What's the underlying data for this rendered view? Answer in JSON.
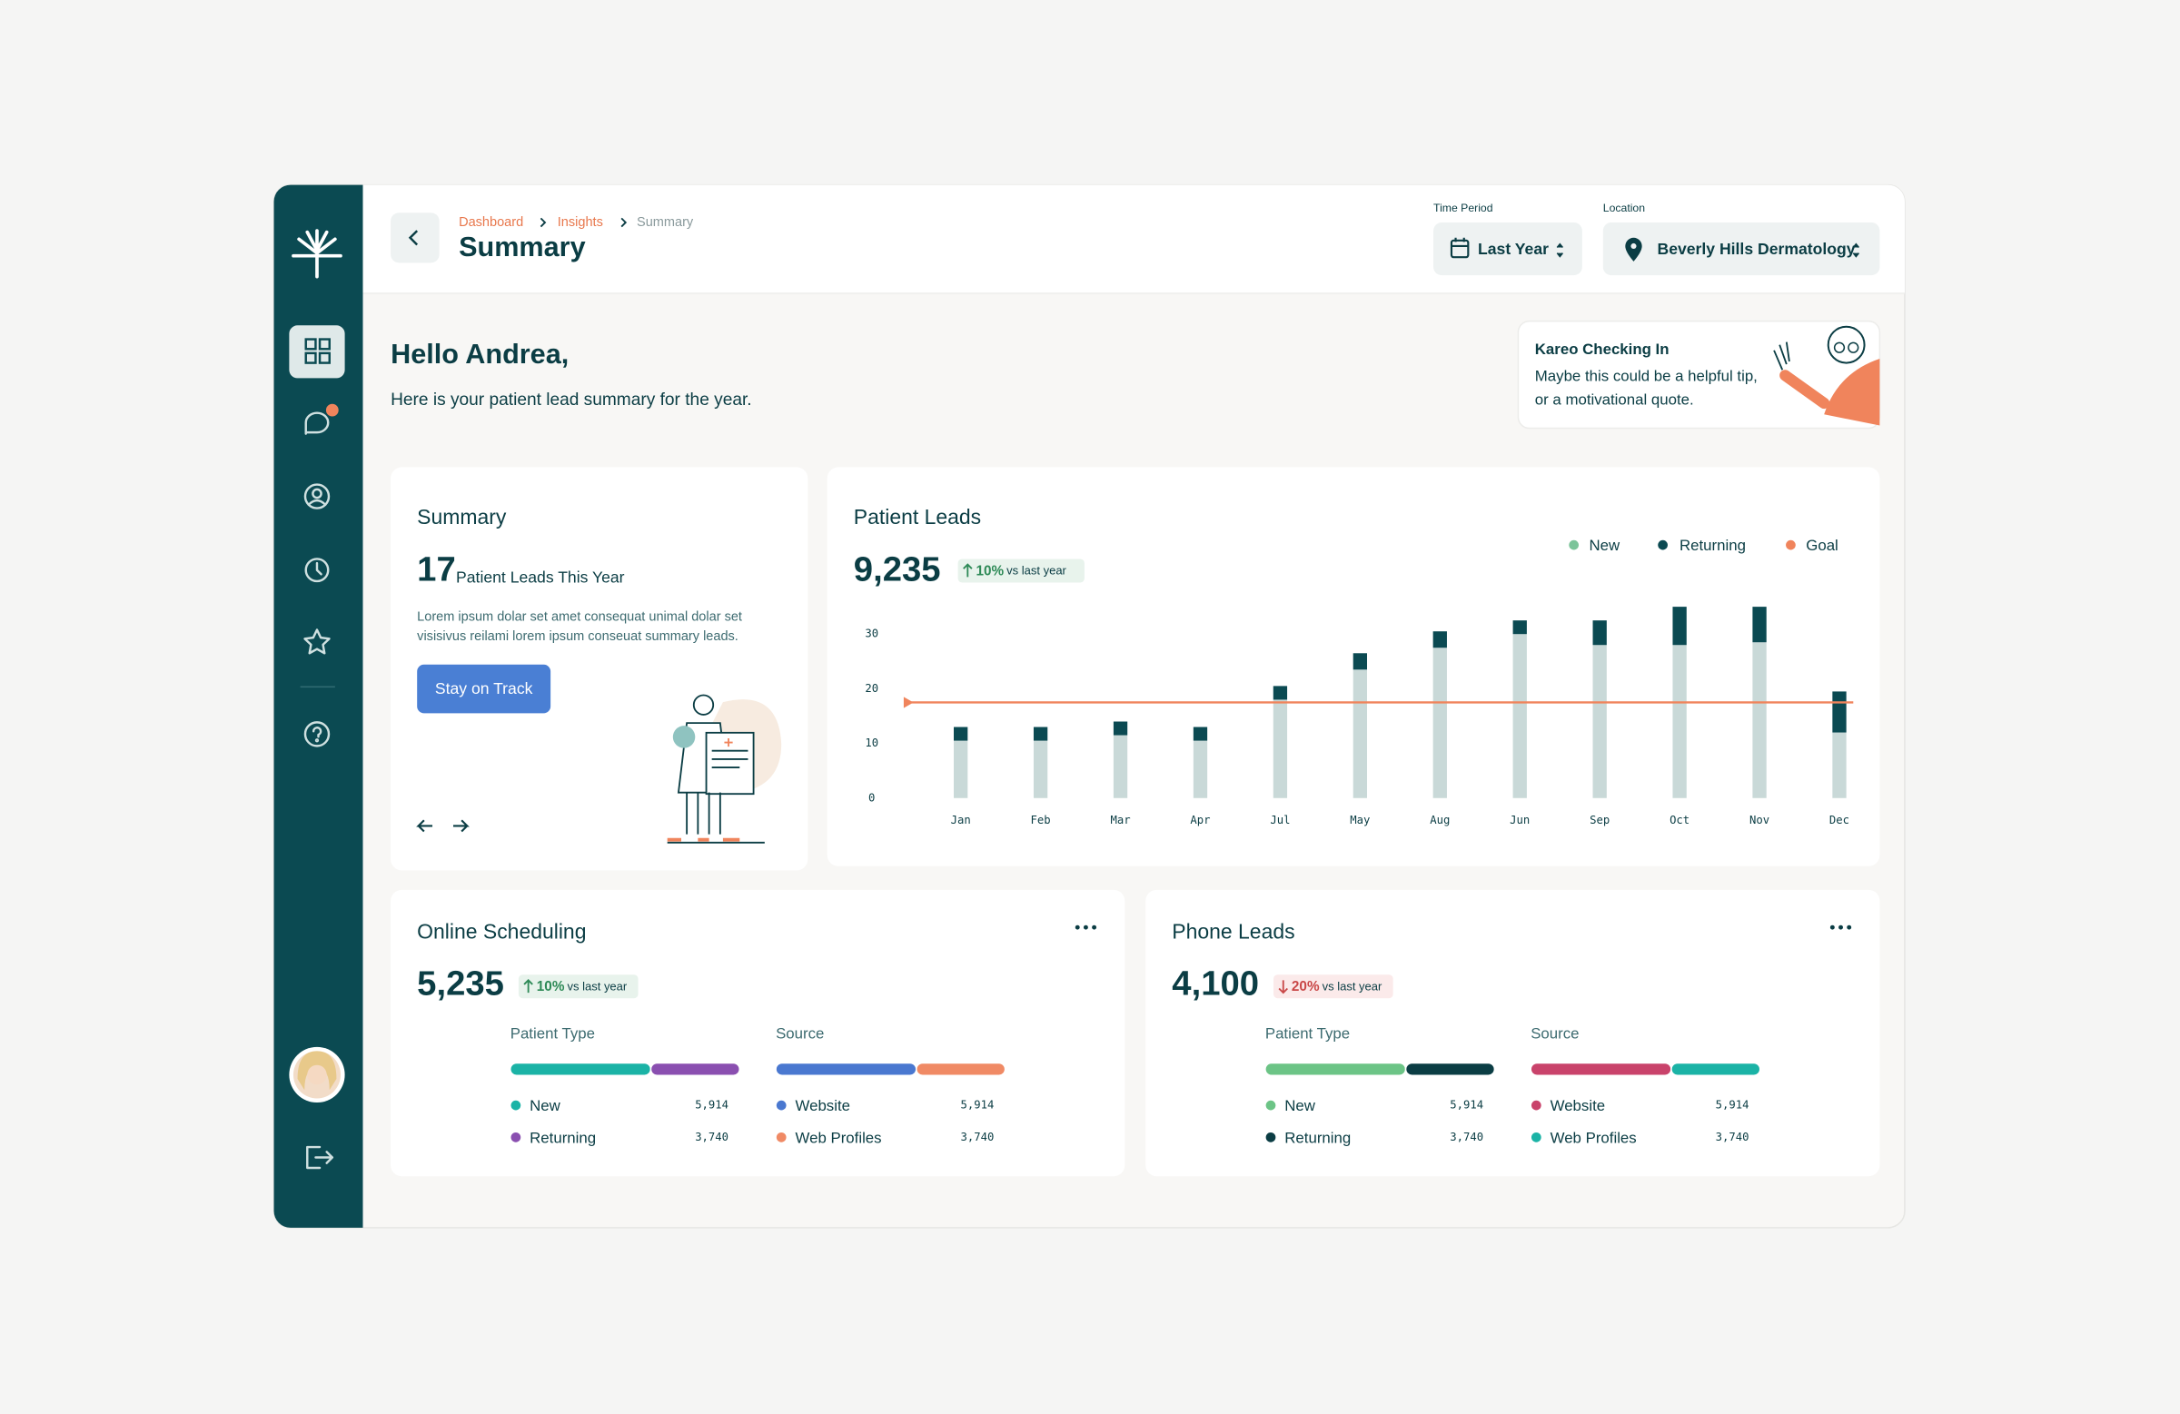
{
  "header": {
    "breadcrumb": [
      "Dashboard",
      "Insights",
      "Summary"
    ],
    "title": "Summary",
    "filters": [
      {
        "label": "Time Period",
        "value": "Last Year"
      },
      {
        "label": "Location",
        "value": "Beverly Hills Dermatology"
      }
    ]
  },
  "greeting": {
    "title": "Hello Andrea,",
    "subtitle": "Here is your patient lead summary for the year."
  },
  "tip": {
    "title": "Kareo Checking In",
    "lines": [
      "Maybe this could be a helpful tip,",
      "or a motivational quote."
    ]
  },
  "summary_card": {
    "title": "Summary",
    "count": 17,
    "count_label": "Patient Leads This Year",
    "body_lines": [
      "Lorem ipsum dolar set amet consequat unimal dolar set",
      "visisivus reilami lorem ipsum conseuat summary leads."
    ],
    "button": "Stay on Track"
  },
  "chart_data": {
    "type": "stacked_bar",
    "title": "Patient Leads",
    "total": "9,235",
    "change": "10%",
    "direction": "up",
    "change_label": "vs last year",
    "categories": [
      "Jan",
      "Feb",
      "Mar",
      "Apr",
      "Jul",
      "May",
      "Aug",
      "Jun",
      "Sep",
      "Oct",
      "Nov",
      "Dec"
    ],
    "series": [
      {
        "name": "New",
        "color": "#c9d9d8",
        "legend_color": "#7cc49a",
        "values": [
          10.5,
          10.5,
          11.5,
          10.5,
          18,
          23.5,
          27.5,
          30,
          28,
          28,
          28.5,
          12
        ]
      },
      {
        "name": "Returning",
        "color": "#0b4a52",
        "legend_color": "#0b4a52",
        "values": [
          2.5,
          2.5,
          2.5,
          2.5,
          2.5,
          3,
          3,
          2.5,
          4.5,
          7,
          6.5,
          7.5
        ]
      }
    ],
    "goal": {
      "name": "Goal",
      "value": 17.5,
      "color": "#f0845c"
    },
    "ylim": [
      0,
      35
    ],
    "yticks": [
      0,
      10,
      20,
      30
    ],
    "legend": "top-right"
  },
  "cards": [
    {
      "title": "Online Scheduling",
      "total": "5,235",
      "change": "10%",
      "direction": "up",
      "change_label": "vs last year",
      "groups": [
        {
          "title": "Patient Type",
          "items": [
            {
              "name": "New",
              "value": 5914,
              "label": "5,914",
              "color": "#1bb3a6"
            },
            {
              "name": "Returning",
              "value": 3740,
              "label": "3,740",
              "color": "#8a4fb0"
            }
          ]
        },
        {
          "title": "Source",
          "items": [
            {
              "name": "Website",
              "value": 5914,
              "label": "5,914",
              "color": "#4a78d0"
            },
            {
              "name": "Web Profiles",
              "value": 3740,
              "label": "3,740",
              "color": "#f08a65"
            }
          ]
        }
      ]
    },
    {
      "title": "Phone Leads",
      "total": "4,100",
      "change": "20%",
      "direction": "down",
      "change_label": "vs last year",
      "groups": [
        {
          "title": "Patient Type",
          "items": [
            {
              "name": "New",
              "value": 5914,
              "label": "5,914",
              "color": "#6cc486"
            },
            {
              "name": "Returning",
              "value": 3740,
              "label": "3,740",
              "color": "#0b3d44"
            }
          ]
        },
        {
          "title": "Source",
          "items": [
            {
              "name": "Website",
              "value": 5914,
              "label": "5,914",
              "color": "#c9436b"
            },
            {
              "name": "Web Profiles",
              "value": 3740,
              "label": "3,740",
              "color": "#1bb3a6"
            }
          ]
        }
      ]
    }
  ]
}
